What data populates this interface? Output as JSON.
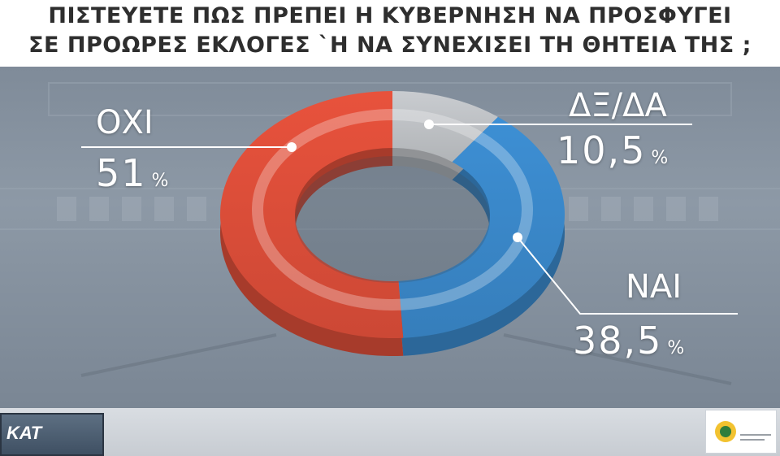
{
  "header": {
    "line1": "ΠΙΣΤΕΥΕΤΕ ΠΩΣ ΠΡΕΠΕΙ Η ΚΥΒΕΡΝΗΣΗ ΝΑ ΠΡΟΣΦΥΓΕΙ",
    "line2": "ΣΕ ΠΡΟΩΡΕΣ ΕΚΛΟΓΕΣ `Η ΝΑ ΣΥΝΕΧΙΣΕΙ ΤΗ ΘΗΤΕΙΑ ΤΗΣ ;"
  },
  "chart_data": {
    "type": "pie",
    "categories": [
      "ΔΞ/ΔΑ",
      "ΝΑΙ",
      "ΟΧΙ"
    ],
    "values": [
      10.5,
      38.5,
      51
    ],
    "value_labels": [
      "10,5",
      "38,5",
      "51"
    ],
    "unit": "%",
    "colors": [
      "#c9ccd0",
      "#3d8fd4",
      "#e8523c"
    ],
    "donut": true
  },
  "branding": {
    "left_logo_text": "ΚΑΤ"
  }
}
